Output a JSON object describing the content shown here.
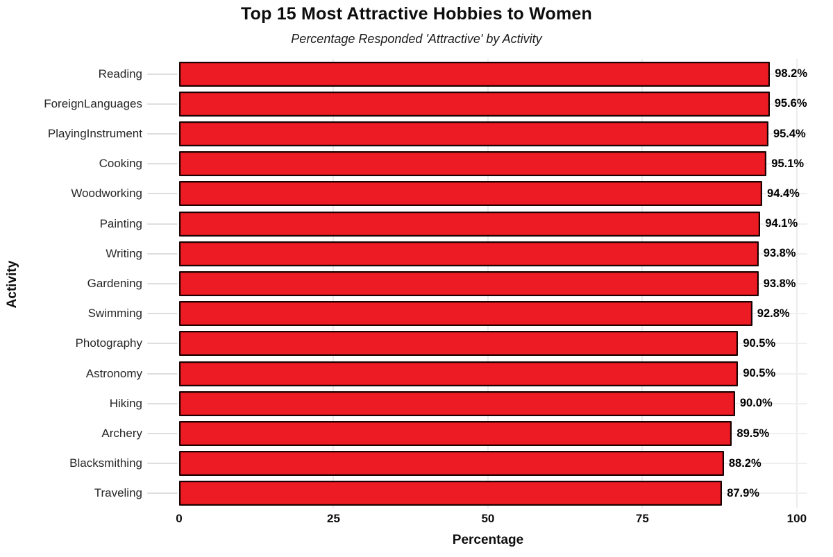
{
  "chart_data": {
    "type": "bar",
    "orientation": "horizontal",
    "title": "Top 15 Most Attractive Hobbies to Women",
    "subtitle": "Percentage Responded 'Attractive' by Activity",
    "xlabel": "Percentage",
    "ylabel": "Activity",
    "categories": [
      "Reading",
      "ForeignLanguages",
      "PlayingInstrument",
      "Cooking",
      "Woodworking",
      "Painting",
      "Writing",
      "Gardening",
      "Swimming",
      "Photography",
      "Astronomy",
      "Hiking",
      "Archery",
      "Blacksmithing",
      "Traveling"
    ],
    "values": [
      98.2,
      95.6,
      95.4,
      95.1,
      94.4,
      94.1,
      93.8,
      93.8,
      92.8,
      90.5,
      90.5,
      90.0,
      89.5,
      88.2,
      87.9
    ],
    "value_labels": [
      "98.2%",
      "95.6%",
      "95.4%",
      "95.1%",
      "94.4%",
      "94.1%",
      "93.8%",
      "93.8%",
      "92.8%",
      "90.5%",
      "90.5%",
      "90.0%",
      "89.5%",
      "88.2%",
      "87.9%"
    ],
    "xticks": [
      0,
      25,
      50,
      75,
      100
    ],
    "xlim": [
      0,
      101.7
    ],
    "grid": true,
    "legend": null,
    "bar_color": "#ed1c24",
    "bar_edge_color": "#190202",
    "gridline_color": "#ececec",
    "background_color": "#ffffff"
  }
}
